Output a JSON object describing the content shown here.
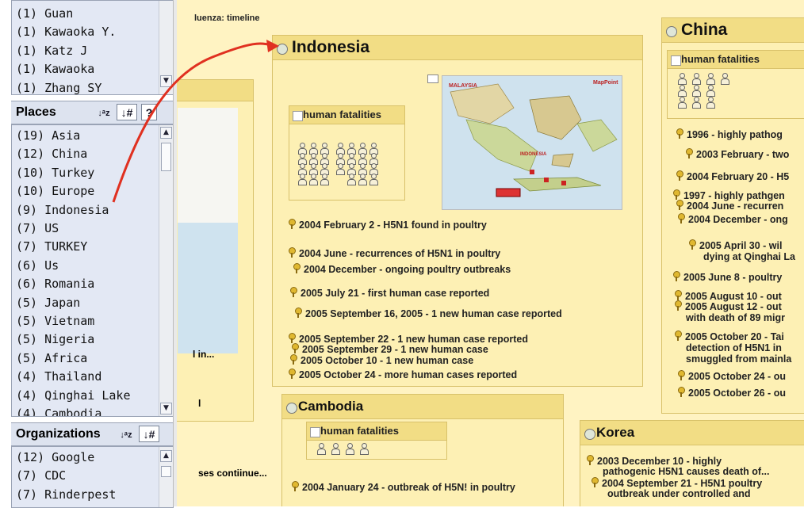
{
  "authors": {
    "items": [
      "(1) Guan",
      "(1) Kawaoka Y.",
      "(1) Katz J",
      "(1) Kawaoka",
      "(1) Zhang SY"
    ]
  },
  "places": {
    "title": "Places",
    "sort_az": "a z",
    "sort_num": "#",
    "help": "?",
    "items": [
      "(19) Asia",
      "(12) China",
      "(10) Turkey",
      "(10) Europe",
      "(9) Indonesia",
      "(7) US",
      "(7) TURKEY",
      "(6) Us",
      "(6) Romania",
      "(5) Japan",
      "(5) Vietnam",
      "(5) Nigeria",
      "(5) Africa",
      "(4) Thailand",
      "(4) Qinghai Lake",
      "(4) Cambodia"
    ]
  },
  "organizations": {
    "title": "Organizations",
    "sort_az": "a z",
    "sort_num": "#",
    "items": [
      "(12) Google",
      "(7) CDC",
      "(7) Rinderpest"
    ]
  },
  "canvas": {
    "breadcrumb": "luenza: timeline",
    "fragments": [
      "l in...",
      "l",
      "ses contiinue..."
    ],
    "fatalities_label": "human fatalities",
    "indonesia": {
      "title": "Indonesia",
      "map_labels": {
        "malaysia": "MALAYSIA",
        "indonesia": "INDONESIA",
        "mappoint": "MapPoint"
      },
      "events": [
        "2004 February 2 - H5N1 found in poultry",
        "2004 June - recurrences of H5N1 in poultry",
        "2004 December - ongoing poultry outbreaks",
        "2005 July 21 - first human case reported",
        "2005 September 16, 2005 - 1 new human case reported",
        "2005 September 22 - 1 new human case reported",
        "2005 September 29 - 1 new human case",
        "2005 October 10 - 1 new human case",
        "2005 October 24 - more human cases reported"
      ]
    },
    "china": {
      "title": "China",
      "events": [
        "1996 - highly pathog",
        "2003 February - two",
        "2004 February 20 - H5",
        "1997 - highly pathgen",
        "2004 June - recurren",
        "2004 December - ong",
        "2005 April 30 - wil",
        "dying at Qinghai La",
        "2005 June 8 - poultry",
        "2005 August 10 - out",
        "2005 August 12 - out",
        "with death of 89 migr",
        "2005 October 20 - Tai",
        "detection of H5N1 in",
        "smuggled from mainla",
        "2005 October 24 - ou",
        "2005 October 26 - ou"
      ]
    },
    "cambodia": {
      "title": "Cambodia",
      "events": [
        "2004 January 24 - outbreak of H5N! in poultry"
      ]
    },
    "korea": {
      "title": "Korea",
      "events": [
        "2003 December 10 - highly",
        "pathogenic H5N1 causes death of...",
        "2004 September 21 - H5N1 poultry",
        "outbreak under controlled and"
      ]
    }
  },
  "colors": {
    "canvas": "#fff3c2",
    "card": "#fdf0b4",
    "card_header": "#f2dd85",
    "list_bg": "#e3e8f4",
    "arrow": "#e03020"
  }
}
